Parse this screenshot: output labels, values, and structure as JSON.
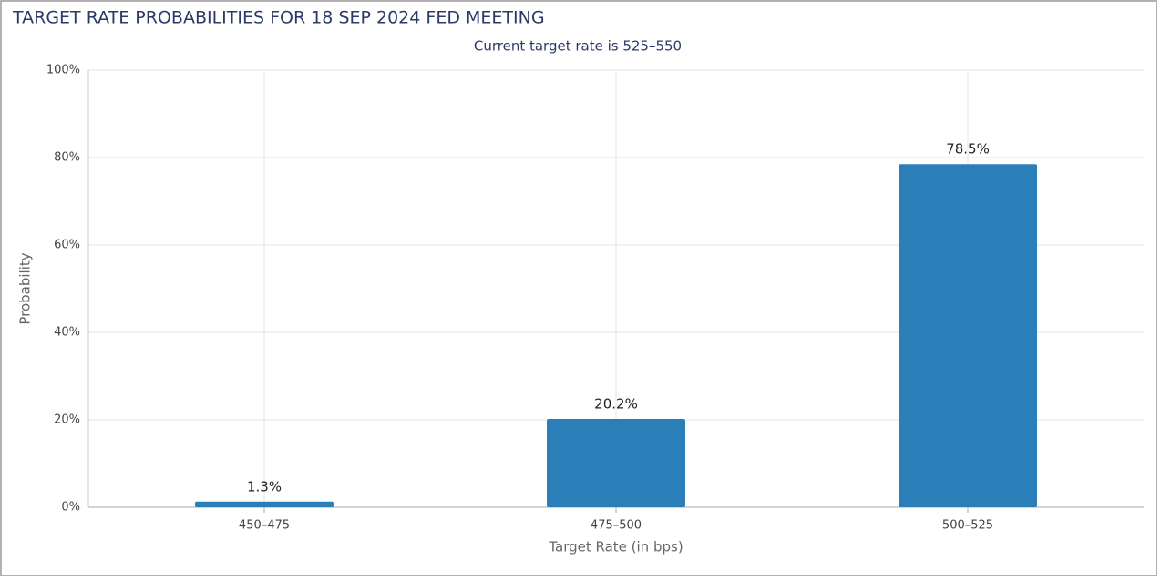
{
  "chart_data": {
    "type": "bar",
    "title": "TARGET RATE PROBABILITIES FOR 18 SEP 2024 FED MEETING",
    "subtitle": "Current target rate is 525–550",
    "x_label": "Target Rate (in bps)",
    "y_label": "Probability",
    "categories": [
      "450–475",
      "475–500",
      "500–525"
    ],
    "values": [
      1.3,
      20.2,
      78.5
    ],
    "value_labels": [
      "1.3%",
      "20.2%",
      "78.5%"
    ],
    "color": "#2a7fb8",
    "ylim": [
      0,
      100
    ],
    "yticks": [
      {
        "value": 0,
        "label": "0%"
      },
      {
        "value": 20,
        "label": "20%"
      },
      {
        "value": 40,
        "label": "40%"
      },
      {
        "value": 60,
        "label": "60%"
      },
      {
        "value": 80,
        "label": "80%"
      },
      {
        "value": 100,
        "label": "100%"
      }
    ],
    "grid": true
  }
}
